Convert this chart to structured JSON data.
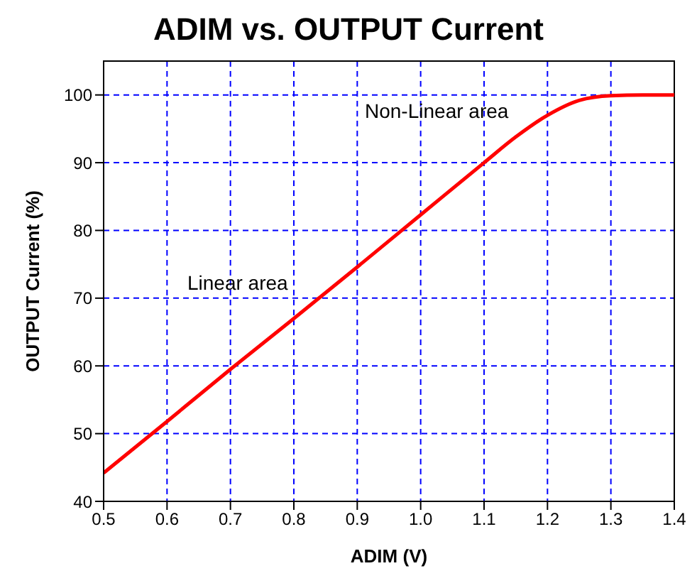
{
  "chart_data": {
    "type": "line",
    "title": "ADIM vs. OUTPUT Current",
    "xlabel": "ADIM (V)",
    "ylabel": "OUTPUT Current (%)",
    "x": [
      0.5,
      0.6,
      0.7,
      0.8,
      0.9,
      1.0,
      1.1,
      1.15,
      1.2,
      1.25,
      1.3,
      1.35,
      1.4
    ],
    "series": [
      {
        "color": "#ff0000",
        "values": [
          44.2,
          51.8,
          59.5,
          67,
          74.6,
          82.3,
          90,
          93.8,
          97,
          99.2,
          99.9,
          100,
          100
        ]
      }
    ],
    "xlim": [
      0.5,
      1.4
    ],
    "xticks": [
      {
        "value": 0.5,
        "label": "0.5"
      },
      {
        "value": 0.6,
        "label": "0.6"
      },
      {
        "value": 0.7,
        "label": "0.7"
      },
      {
        "value": 0.8,
        "label": "0.8"
      },
      {
        "value": 0.9,
        "label": "0.9"
      },
      {
        "value": 1.0,
        "label": "1.0"
      },
      {
        "value": 1.1,
        "label": "1.1"
      },
      {
        "value": 1.2,
        "label": "1.2"
      },
      {
        "value": 1.3,
        "label": "1.3"
      },
      {
        "value": 1.4,
        "label": "1.4"
      }
    ],
    "ylim": [
      40,
      105
    ],
    "yticks": [
      40,
      50,
      60,
      70,
      80,
      90,
      100
    ],
    "grid": true,
    "marker": "none",
    "line_style": "solid",
    "annotations": [
      "Linear area",
      "Non-Linear area"
    ]
  }
}
